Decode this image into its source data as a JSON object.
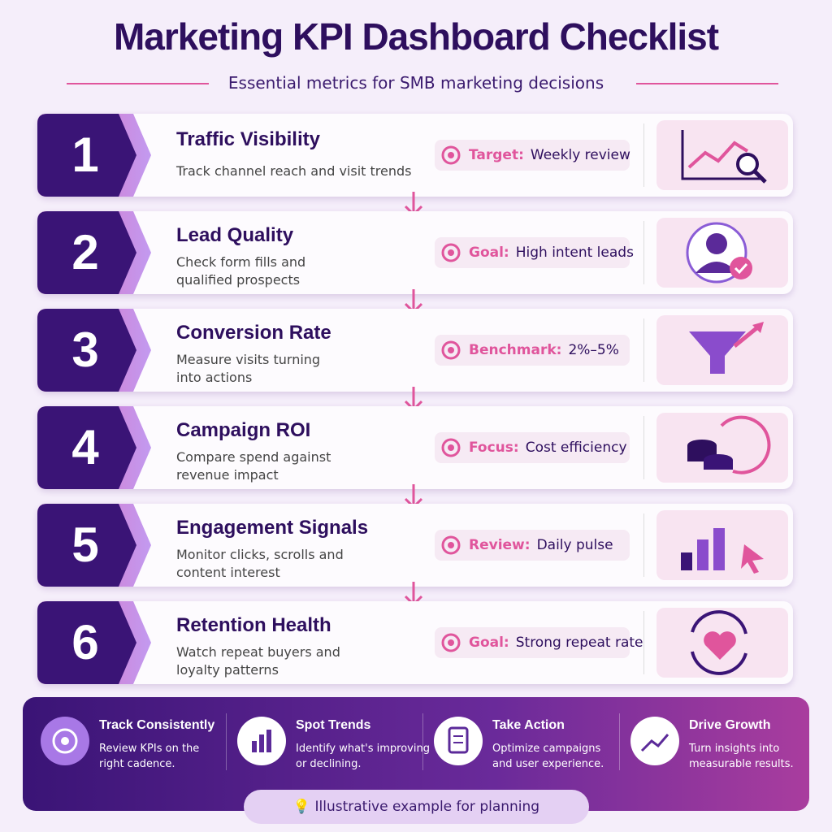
{
  "header": {
    "title": "Marketing KPI Dashboard Checklist",
    "subtitle": "Essential metrics for SMB marketing decisions"
  },
  "steps": [
    {
      "number": 1,
      "title": "Traffic Visibility",
      "description": [
        "Track channel reach and visit trends"
      ],
      "label": "Target:",
      "value": "Weekly review"
    },
    {
      "number": 2,
      "title": "Lead Quality",
      "description": [
        "Check form fills and",
        "qualified prospects"
      ],
      "label": "Goal:",
      "value": "High intent leads"
    },
    {
      "number": 3,
      "title": "Conversion Rate",
      "description": [
        "Measure visits turning",
        "into actions"
      ],
      "label": "Benchmark:",
      "value": "2%–5%"
    },
    {
      "number": 4,
      "title": "Campaign ROI",
      "description": [
        "Compare spend against",
        "revenue impact"
      ],
      "label": "Focus:",
      "value": "Cost efficiency"
    },
    {
      "number": 5,
      "title": "Engagement Signals",
      "description": [
        "Monitor clicks, scrolls and",
        "content interest"
      ],
      "label": "Review:",
      "value": "Daily pulse"
    },
    {
      "number": 6,
      "title": "Retention Health",
      "description": [
        "Watch repeat buyers and",
        "loyalty patterns"
      ],
      "label": "Goal:",
      "value": "Strong repeat rate"
    }
  ],
  "footer": {
    "items": [
      {
        "title": "Track Consistently",
        "text": [
          "Review KPIs on the",
          "right cadence."
        ]
      },
      {
        "title": "Spot Trends",
        "text": [
          "Identify what's improving",
          "or declining."
        ]
      },
      {
        "title": "Take Action",
        "text": [
          "Optimize campaigns",
          "and user experience."
        ]
      },
      {
        "title": "Drive Growth",
        "text": [
          "Turn insights into",
          "measurable results."
        ]
      }
    ],
    "note": "Illustrative example for planning"
  }
}
